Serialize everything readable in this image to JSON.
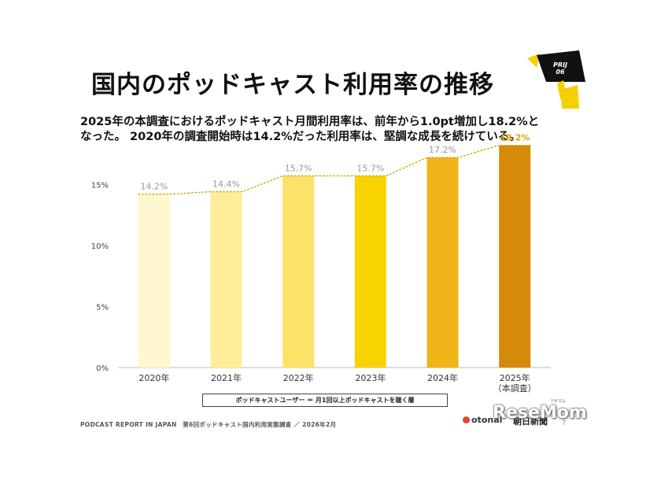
{
  "title": "国内のポッドキャスト利用率の推移",
  "lead_line1": "2025年の本調査におけるポッドキャスト月間利用率は、前年から1.0pt増加し18.2%と",
  "lead_line2": "なった。 2020年の調査開始時は14.2%だった利用率は、堅調な成長を続けている。",
  "badge": {
    "line1": "PRIJ",
    "line2": "06"
  },
  "legend": "ポッドキャストユーザー ＝ 月1回以上ポッドキャストを聴く層",
  "footer": "PODCAST REPORT IN JAPAN　第6回ポッドキャスト国内利用実態調査 ／ 2026年2月",
  "logos": {
    "otonal": "otonal",
    "asahi": "朝日新聞"
  },
  "watermark": {
    "main": "ResеMom",
    "ruby": "リセマム"
  },
  "page_number": "7",
  "colors": {
    "accent_yellow": "#f5d000",
    "trend_dots": "#c9a400",
    "bars": [
      "#fff7cf",
      "#fdee9a",
      "#fbe36a",
      "#f8d300",
      "#f0b418",
      "#d68a0a"
    ]
  },
  "chart_data": {
    "type": "bar",
    "categories": [
      "2020年",
      "2021年",
      "2022年",
      "2023年",
      "2024年",
      "2025年\n（本調査）"
    ],
    "category_lines": [
      [
        "2020年"
      ],
      [
        "2021年"
      ],
      [
        "2022年"
      ],
      [
        "2023年"
      ],
      [
        "2024年"
      ],
      [
        "2025年",
        "（本調査）"
      ]
    ],
    "values": [
      14.2,
      14.4,
      15.7,
      15.7,
      17.2,
      18.2
    ],
    "data_labels": [
      "14.2%",
      "14.4%",
      "15.7%",
      "15.7%",
      "17.2%",
      "18.2%"
    ],
    "yticks": [
      0,
      5,
      10,
      15
    ],
    "ytick_labels": [
      "0%",
      "5%",
      "10%",
      "15%"
    ],
    "ylim": [
      0,
      18.5
    ],
    "trendline": "dotted",
    "grid": false,
    "xlabel": "",
    "ylabel": "",
    "highlight_last": true
  }
}
